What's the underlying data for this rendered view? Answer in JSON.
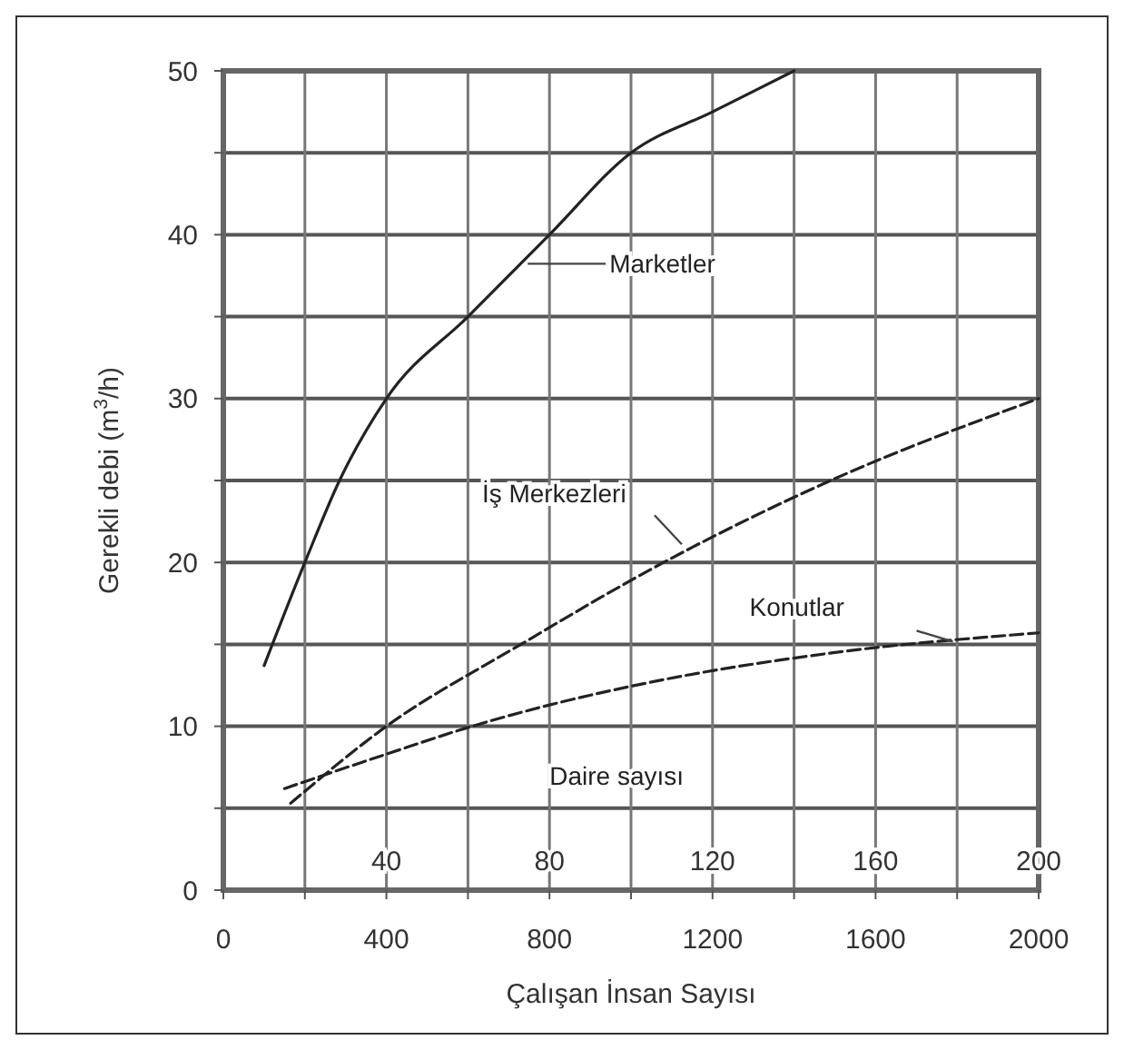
{
  "chart_data": {
    "type": "line",
    "xlabel": "Çalışan İnsan Sayısı",
    "ylabel": "Gerekli debi (m$^{3}$/h)",
    "x2label": "Daire sayısı",
    "xlim": [
      0,
      2000
    ],
    "xticks": [
      0,
      {
        "value": 200,
        "label": null
      },
      400,
      {
        "value": 600,
        "label": null
      },
      800,
      {
        "value": 1000,
        "label": null
      },
      1200,
      {
        "value": 1400,
        "label": null
      },
      1600,
      {
        "value": 1800,
        "label": null
      },
      2000
    ],
    "x2lim": [
      0,
      200
    ],
    "x2ticks": [
      40,
      80,
      120,
      160,
      200
    ],
    "ylim": [
      0,
      50
    ],
    "yticks": [
      0,
      {
        "value": 5,
        "label": null
      },
      10,
      {
        "value": 15,
        "label": null
      },
      20,
      {
        "value": 25,
        "label": null
      },
      30,
      {
        "value": 35,
        "label": null
      },
      40,
      {
        "value": 45,
        "label": null
      },
      50
    ],
    "grid": true,
    "marker": "none",
    "series": [
      {
        "name": "Marketler",
        "color": "#222222",
        "line_style": "solid",
        "x": [
          100,
          200,
          285,
          400,
          600,
          800,
          1000,
          1200,
          1400
        ],
        "values": [
          13.7,
          20,
          25,
          30,
          35,
          40,
          45,
          47.5,
          50
        ]
      },
      {
        "name": "İş Merkezleri",
        "color": "#222222",
        "line_style": "dashed",
        "x": [
          165,
          400,
          730,
          1080,
          1490,
          2000
        ],
        "values": [
          5.3,
          10,
          15,
          20,
          25,
          30
        ]
      },
      {
        "name": "Konutlar",
        "color": "#222222",
        "line_style": "dashed",
        "axis": "x2",
        "x": [
          15,
          40,
          61,
          80,
          105,
          150,
          200
        ],
        "values": [
          6.2,
          8.3,
          10,
          11.3,
          12.7,
          14.5,
          15.7
        ]
      }
    ]
  }
}
